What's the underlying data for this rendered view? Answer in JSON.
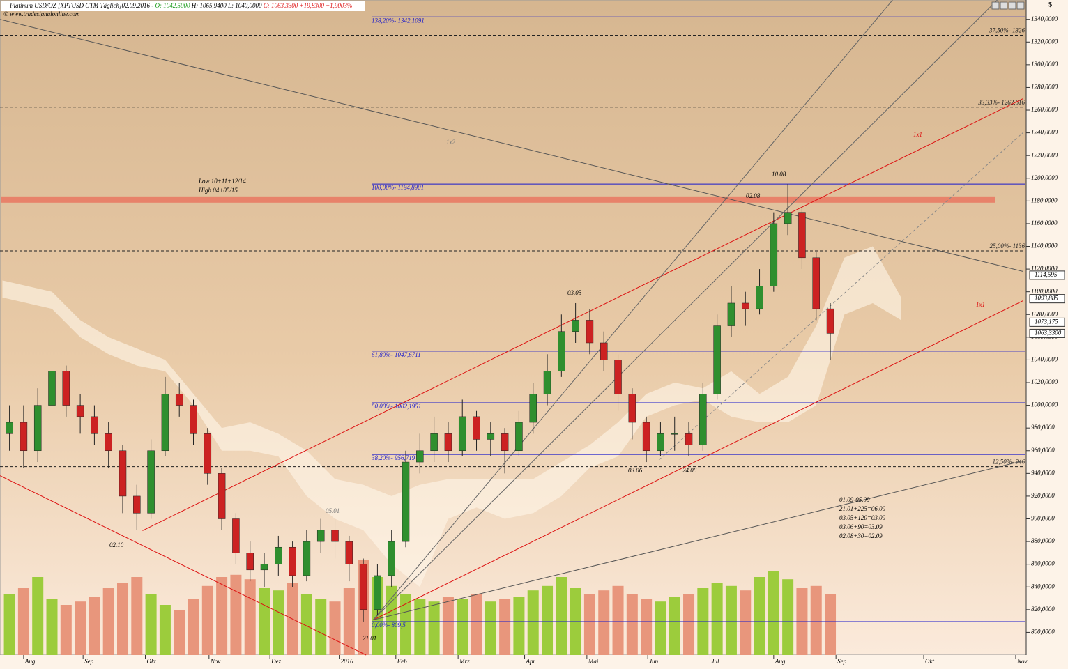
{
  "chart_data": {
    "type": "candlestick",
    "header": {
      "name": "Platinum USD/OZ [XPTUSD GTM Täglich]02.09.2016 -",
      "open": "O: 1042,5000",
      "high": "H: 1065,9400",
      "low": "L: 1040,0000",
      "close": "C: 1063,3300 +19,8300 +1,9003%"
    },
    "source": "© www.tradesignalonline.com",
    "axis_unit": "$",
    "xlim": [
      -1.67,
      70.84
    ],
    "ylim": [
      780,
      1357
    ],
    "grid": false,
    "up_color": "#2f8f2f",
    "down_color": "#cc2222",
    "volume_up_color": "#9ccc3c",
    "volume_down_color": "#e8967c",
    "xticks": [
      {
        "value": 0,
        "label": "Aug"
      },
      {
        "value": 4.2,
        "label": "Sep"
      },
      {
        "value": 8.6,
        "label": "Okt"
      },
      {
        "value": 13.1,
        "label": "Nov"
      },
      {
        "value": 17.4,
        "label": "Dez"
      },
      {
        "value": 22.3,
        "label": "2016"
      },
      {
        "value": 26.3,
        "label": "Feb"
      },
      {
        "value": 30.7,
        "label": "Mrz"
      },
      {
        "value": 35.4,
        "label": "Apr"
      },
      {
        "value": 39.8,
        "label": "Mai"
      },
      {
        "value": 44.1,
        "label": "Jun"
      },
      {
        "value": 48.5,
        "label": "Jul"
      },
      {
        "value": 53,
        "label": "Aug"
      },
      {
        "value": 57.4,
        "label": "Sep"
      },
      {
        "value": 63.6,
        "label": "Okt"
      },
      {
        "value": 70.1,
        "label": "Nov"
      }
    ],
    "yticks": [
      {
        "value": 800,
        "label": "800,0000"
      },
      {
        "value": 820,
        "label": "820,0000"
      },
      {
        "value": 840,
        "label": "840,0000"
      },
      {
        "value": 860,
        "label": "860,0000"
      },
      {
        "value": 880,
        "label": "880,0000"
      },
      {
        "value": 900,
        "label": "900,0000"
      },
      {
        "value": 920,
        "label": "920,0000"
      },
      {
        "value": 940,
        "label": "940,0000"
      },
      {
        "value": 960,
        "label": "960,0000"
      },
      {
        "value": 980,
        "label": "980,0000"
      },
      {
        "value": 1000,
        "label": "1000,0000"
      },
      {
        "value": 1020,
        "label": "1020,0000"
      },
      {
        "value": 1040,
        "label": "1040,0000"
      },
      {
        "value": 1060,
        "label": "1060,0000"
      },
      {
        "value": 1080,
        "label": "1080,0000"
      },
      {
        "value": 1100,
        "label": "1100,0000"
      },
      {
        "value": 1120,
        "label": "1120,0000"
      },
      {
        "value": 1140,
        "label": "1140,0000"
      },
      {
        "value": 1160,
        "label": "1160,0000"
      },
      {
        "value": 1180,
        "label": "1180,0000"
      },
      {
        "value": 1200,
        "label": "1200,0000"
      },
      {
        "value": 1220,
        "label": "1220,0000"
      },
      {
        "value": 1240,
        "label": "1240,0000"
      },
      {
        "value": 1260,
        "label": "1260,0000"
      },
      {
        "value": 1280,
        "label": "1280,0000"
      },
      {
        "value": 1300,
        "label": "1300,0000"
      },
      {
        "value": 1320,
        "label": "1320,0000"
      },
      {
        "value": 1340,
        "label": "1340,0000"
      }
    ],
    "candles": {
      "x": [
        -1,
        0,
        1,
        2,
        3,
        4,
        5,
        6,
        7,
        8,
        9,
        10,
        11,
        12,
        13,
        14,
        15,
        16,
        17,
        18,
        19,
        20,
        21,
        22,
        23,
        24,
        25,
        26,
        27,
        28,
        29,
        30,
        31,
        32,
        33,
        34,
        35,
        36,
        37,
        38,
        39,
        40,
        41,
        42,
        43,
        44,
        45,
        46,
        47,
        48,
        49,
        50,
        51,
        52,
        53,
        54,
        55,
        56,
        57
      ],
      "open": [
        975,
        985,
        960,
        1000,
        1030,
        1000,
        990,
        975,
        960,
        920,
        905,
        960,
        1010,
        1000,
        975,
        940,
        900,
        870,
        855,
        860,
        875,
        850,
        880,
        890,
        880,
        860,
        820,
        850,
        880,
        950,
        960,
        975,
        960,
        990,
        970,
        975,
        960,
        985,
        1010,
        1030,
        1065,
        1075,
        1055,
        1040,
        1010,
        985,
        960,
        975,
        975,
        965,
        1010,
        1070,
        1090,
        1085,
        1105,
        1160,
        1170,
        1130,
        1085
      ],
      "high": [
        1000,
        1000,
        1015,
        1040,
        1035,
        1010,
        1000,
        985,
        965,
        930,
        970,
        1025,
        1020,
        1005,
        980,
        945,
        905,
        880,
        870,
        885,
        880,
        890,
        900,
        900,
        885,
        865,
        860,
        890,
        960,
        975,
        990,
        985,
        1005,
        995,
        985,
        980,
        995,
        1020,
        1045,
        1080,
        1090,
        1085,
        1065,
        1045,
        1015,
        990,
        985,
        990,
        985,
        1020,
        1080,
        1105,
        1100,
        1120,
        1170,
        1195,
        1175,
        1135,
        1090
      ],
      "low": [
        960,
        945,
        950,
        995,
        990,
        975,
        965,
        945,
        905,
        890,
        900,
        955,
        990,
        965,
        930,
        890,
        860,
        845,
        840,
        850,
        840,
        845,
        870,
        865,
        845,
        809.5,
        815,
        840,
        875,
        940,
        950,
        950,
        955,
        960,
        955,
        940,
        955,
        975,
        1000,
        1025,
        1055,
        1045,
        1030,
        995,
        970,
        950,
        955,
        960,
        955,
        960,
        1005,
        1060,
        1070,
        1080,
        1100,
        1150,
        1120,
        1075,
        1040
      ],
      "close": [
        985,
        960,
        1000,
        1030,
        1000,
        990,
        975,
        960,
        920,
        905,
        960,
        1010,
        1000,
        975,
        940,
        900,
        870,
        855,
        860,
        875,
        850,
        880,
        890,
        880,
        860,
        820,
        850,
        880,
        950,
        960,
        975,
        960,
        990,
        970,
        975,
        960,
        985,
        1010,
        1030,
        1065,
        1075,
        1055,
        1040,
        1010,
        985,
        960,
        975,
        975,
        965,
        1010,
        1070,
        1090,
        1085,
        1105,
        1160,
        1170,
        1130,
        1085,
        1063.33
      ],
      "volume": [
        55,
        60,
        70,
        50,
        45,
        48,
        52,
        60,
        65,
        70,
        55,
        45,
        40,
        50,
        62,
        70,
        72,
        68,
        60,
        58,
        65,
        55,
        50,
        48,
        60,
        85,
        70,
        62,
        55,
        50,
        48,
        52,
        50,
        55,
        48,
        50,
        52,
        58,
        62,
        70,
        60,
        55,
        58,
        62,
        55,
        50,
        48,
        52,
        55,
        60,
        65,
        62,
        58,
        70,
        75,
        68,
        60,
        62,
        55
      ]
    },
    "cloud": {
      "color": "#fff6ea",
      "x": [
        -1.5,
        2,
        4,
        6,
        8,
        10,
        12,
        14,
        16,
        18,
        20,
        22,
        24,
        26,
        28,
        30,
        32,
        34,
        36,
        38,
        40,
        42,
        44,
        46,
        48,
        50,
        52,
        54,
        56,
        58,
        60,
        62
      ],
      "upper": [
        1110,
        1100,
        1075,
        1060,
        1050,
        1040,
        1010,
        980,
        985,
        975,
        960,
        935,
        930,
        920,
        930,
        935,
        935,
        935,
        935,
        950,
        965,
        985,
        1010,
        1020,
        1015,
        1030,
        1010,
        1025,
        1070,
        1130,
        1140,
        1095
      ],
      "lower": [
        1095,
        1085,
        1060,
        1045,
        1035,
        1030,
        1000,
        960,
        960,
        955,
        920,
        900,
        890,
        860,
        840,
        900,
        910,
        900,
        905,
        920,
        945,
        955,
        990,
        1000,
        1005,
        990,
        985,
        985,
        1000,
        1080,
        1090,
        1075
      ]
    },
    "band": {
      "low": 1178.5,
      "high": 1184,
      "color": "#e8826a"
    },
    "levels": [
      {
        "value": 1342.1091,
        "label": "138,20%- 1342,1091",
        "style": "fib"
      },
      {
        "value": 1194.8901,
        "label": "100,00%- 1194,8901",
        "style": "fib"
      },
      {
        "value": 1047.6711,
        "label": "61,80%- 1047,6711",
        "style": "fib"
      },
      {
        "value": 1002.1951,
        "label": "50,00%- 1002,1951",
        "style": "fib"
      },
      {
        "value": 956.719,
        "label": "38,20%- 956,719",
        "style": "fib"
      },
      {
        "value": 809.5,
        "label": "0,00%- 809,5",
        "style": "fib"
      },
      {
        "value": 1326,
        "label": "37,50%- 1326",
        "style": "gann"
      },
      {
        "value": 1262.616,
        "label": "33,33%- 1262,616",
        "style": "gann"
      },
      {
        "value": 1136,
        "label": "25,00%- 1136",
        "style": "gann"
      },
      {
        "value": 946,
        "label": "12,50%- 946",
        "style": "gann"
      }
    ],
    "lines": [
      {
        "x": [
          -1.67,
          24.2
        ],
        "y": [
          938,
          780
        ],
        "color": "#dd1111"
      },
      {
        "x": [
          8.4,
          70.6
        ],
        "y": [
          889.6,
          1270
        ],
        "color": "#dd1111"
      },
      {
        "x": [
          24.7,
          70.6
        ],
        "y": [
          811,
          1092
        ],
        "color": "#dd1111"
      },
      {
        "x": [
          -1.67,
          70.6
        ],
        "y": [
          1340,
          1118
        ],
        "color": "#555555"
      },
      {
        "x": [
          24.7,
          61.4
        ],
        "y": [
          811,
          1357
        ],
        "color": "#666666"
      },
      {
        "x": [
          24.7,
          68.8
        ],
        "y": [
          811,
          1357
        ],
        "color": "#666666"
      },
      {
        "x": [
          24.7,
          70.6
        ],
        "y": [
          811,
          951
        ],
        "color": "#555555"
      },
      {
        "x": [
          44.9,
          70.6
        ],
        "y": [
          952,
          1240
        ],
        "color": "#888888",
        "dashed": true
      }
    ],
    "price_markers": [
      {
        "value": 1114.595,
        "label": "1114,595"
      },
      {
        "value": 1093.885,
        "label": "1093,885"
      },
      {
        "value": 1073.175,
        "label": "1073,175"
      },
      {
        "value": 1063.33,
        "label": "1063,3300"
      }
    ],
    "annotations": {
      "low_high_1": "Low 10+11+12/14",
      "low_high_2": "High 04+05/15",
      "fan_1x2": "1x2",
      "fan_1x1_a": "1x1",
      "fan_1x1_b": "1x1",
      "d1008": "10.08",
      "d0208": "02.08",
      "d0305": "03.05",
      "d0306": "03.06",
      "d2406": "24.06",
      "d0501": "05.01",
      "d0210": "02.10",
      "d2101": "21.01",
      "cycles": [
        "01.09-05.09",
        "21.01+225=06.09",
        "03.05+120=03.09",
        "03.06+90=03.09",
        "02.08+30=02.09"
      ]
    }
  }
}
